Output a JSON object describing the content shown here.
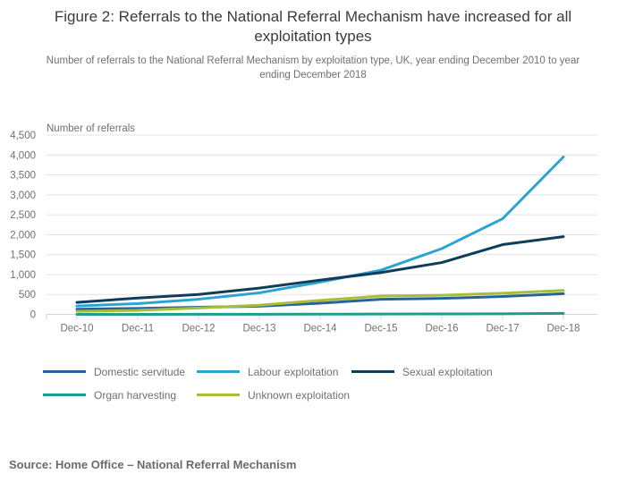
{
  "figure": {
    "title": "Figure 2: Referrals to the National Referral Mechanism have increased for all exploitation types",
    "subtitle": "Number of referrals to the National Referral Mechanism by exploitation type, UK, year ending December 2010 to year ending December 2018",
    "source": "Source: Home Office – National Referral Mechanism"
  },
  "chart_data": {
    "type": "line",
    "title": "Figure 2: Referrals to the National Referral Mechanism have increased for all exploitation types",
    "axis_title": "Number of referrals",
    "xlabel": "",
    "ylabel": "Number of referrals",
    "categories": [
      "Dec-10",
      "Dec-11",
      "Dec-12",
      "Dec-13",
      "Dec-14",
      "Dec-15",
      "Dec-16",
      "Dec-17",
      "Dec-18"
    ],
    "series": [
      {
        "name": "Domestic servitude",
        "color": "#27639B",
        "values": [
          130,
          150,
          180,
          205,
          280,
          380,
          400,
          450,
          520
        ]
      },
      {
        "name": "Labour exploitation",
        "color": "#2DA3D2",
        "values": [
          210,
          270,
          380,
          540,
          810,
          1110,
          1650,
          2400,
          3950
        ]
      },
      {
        "name": "Sexual exploitation",
        "color": "#0E3D5C",
        "values": [
          300,
          410,
          500,
          660,
          860,
          1050,
          1300,
          1750,
          1950
        ]
      },
      {
        "name": "Organ harvesting",
        "color": "#1D9E8D",
        "values": [
          0,
          1,
          2,
          3,
          5,
          8,
          10,
          15,
          25
        ]
      },
      {
        "name": "Unknown exploitation",
        "color": "#A9BD3B",
        "values": [
          75,
          100,
          160,
          230,
          350,
          460,
          480,
          530,
          600
        ]
      }
    ],
    "ylim": [
      0,
      4500
    ],
    "ytick_step": 500,
    "ytick_labels": [
      "0",
      "500",
      "1,000",
      "1,500",
      "2,000",
      "2,500",
      "3,000",
      "3,500",
      "4,000",
      "4,500"
    ],
    "grid": true,
    "legend_position": "bottom"
  },
  "colors": {
    "text_primary": "#3b3b3b",
    "text_secondary": "#707071",
    "gridline": "#e3e3e3",
    "axis": "#c9d6ea",
    "background": "#ffffff"
  }
}
